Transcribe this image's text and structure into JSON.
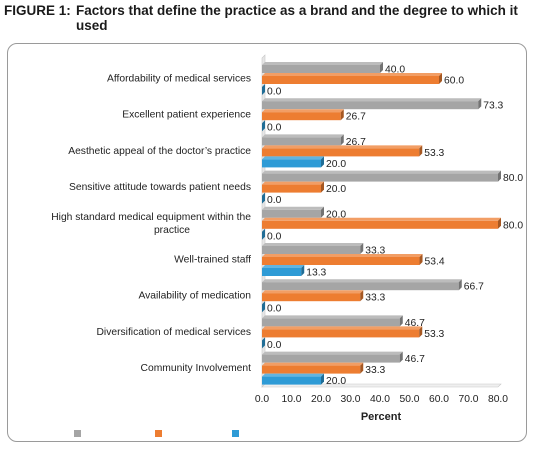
{
  "figure": {
    "label": "FIGURE 1:",
    "title": "Factors that define the practice as a brand and the degree to which it used"
  },
  "chart_data": {
    "type": "bar",
    "orientation": "horizontal",
    "style": "3d",
    "categories": [
      "Affordability of medical services",
      "Excellent patient experience",
      "Aesthetic appeal of the doctor’s practice",
      "Sensitive attitude towards patient needs",
      "High standard medical equipment within the practice",
      "Well-trained staff",
      "Availability of medication",
      "Diversification of medical services",
      "Community Involvement"
    ],
    "series": [
      {
        "values": [
          40.0,
          73.3,
          26.7,
          80.0,
          20.0,
          33.3,
          66.7,
          46.7,
          46.7
        ],
        "color": "#a5a5a5"
      },
      {
        "values": [
          60.0,
          26.7,
          53.3,
          20.0,
          80.0,
          53.4,
          33.3,
          53.3,
          33.3
        ],
        "color": "#ed7d31"
      },
      {
        "values": [
          0.0,
          0.0,
          20.0,
          0.0,
          0.0,
          13.3,
          0.0,
          0.0,
          20.0
        ],
        "color": "#2e9bd6"
      }
    ],
    "x_ticks": [
      "0.0",
      "10.0",
      "20.0",
      "30.0",
      "40.0",
      "50.0",
      "60.0",
      "70.0",
      "80.0"
    ],
    "xlim": [
      0,
      80
    ],
    "xlabel": "Percent",
    "ylabel": "",
    "grid": false,
    "legend": "bottom-left"
  }
}
